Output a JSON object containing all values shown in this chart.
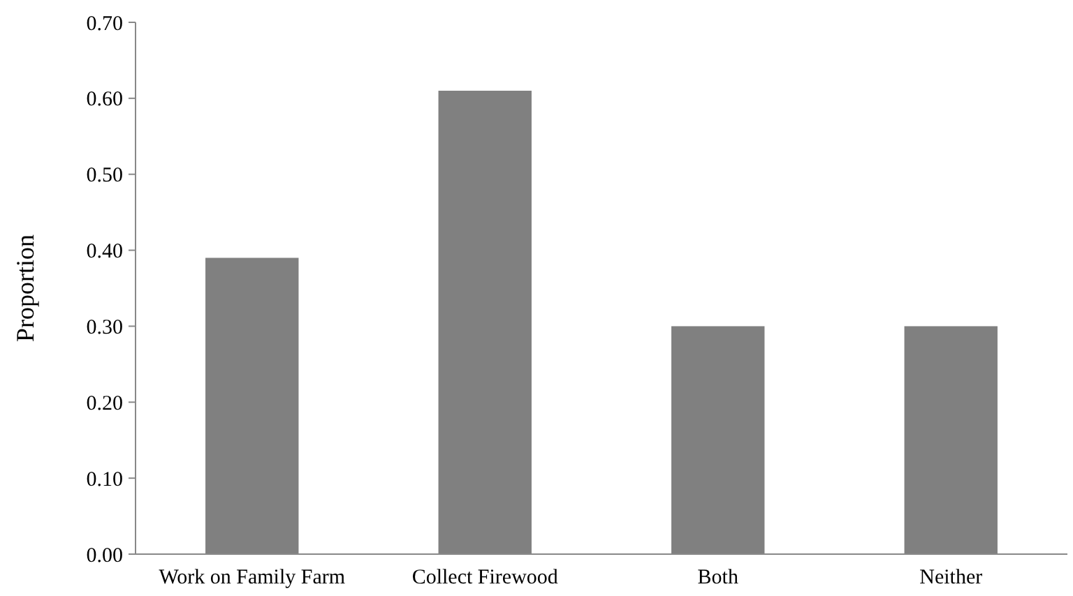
{
  "chart_data": {
    "type": "bar",
    "ylabel": "Proportion",
    "categories": [
      "Work on Family Farm",
      "Collect Firewood",
      "Both",
      "Neither"
    ],
    "values": [
      0.39,
      0.61,
      0.3,
      0.3
    ],
    "color": "#808080",
    "ylim": [
      0,
      0.7
    ],
    "yticks": [
      {
        "value": 0,
        "label": "0.00"
      },
      {
        "value": 0.1,
        "label": "0.10"
      },
      {
        "value": 0.2,
        "label": "0.20"
      },
      {
        "value": 0.3,
        "label": "0.30"
      },
      {
        "value": 0.4,
        "label": "0.40"
      },
      {
        "value": 0.5,
        "label": "0.50"
      },
      {
        "value": 0.6,
        "label": "0.60"
      },
      {
        "value": 0.7,
        "label": "0.70"
      }
    ],
    "grid": false
  }
}
